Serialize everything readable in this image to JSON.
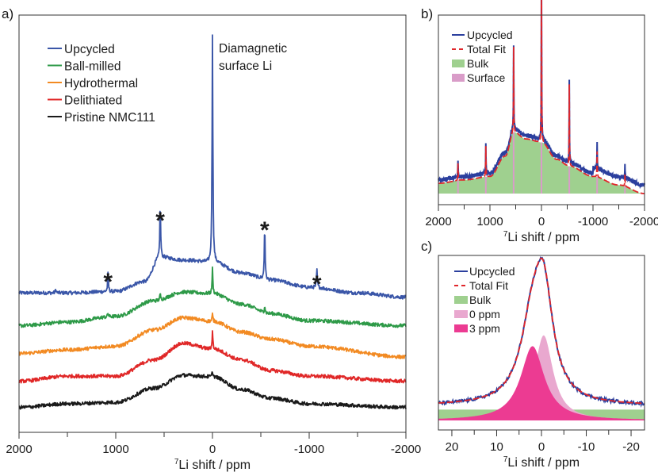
{
  "chart_data": [
    {
      "panel": "a)",
      "type": "line",
      "title": "",
      "xlabel_sup": "7",
      "xlabel": "Li shift / ppm",
      "ylabel": "",
      "xlim": [
        2000,
        -2000
      ],
      "x_ticks": [
        2000,
        1000,
        0,
        -1000,
        -2000
      ],
      "x_tick_labels": [
        "2000",
        "1000",
        "0",
        "-1000",
        "-2000"
      ],
      "x_minor_ticks": [
        1500,
        500,
        -500,
        -1500
      ],
      "y_axis_shown": false,
      "grid": false,
      "legend_position": "top-left",
      "annotations": [
        {
          "text": "Diamagnetic",
          "line": 1
        },
        {
          "text": "surface Li",
          "line": 2
        },
        {
          "text": "*",
          "x": 1080,
          "marks": "spinning sideband"
        },
        {
          "text": "*",
          "x": 540,
          "marks": "spinning sideband"
        },
        {
          "text": "*",
          "x": -540,
          "marks": "spinning sideband"
        },
        {
          "text": "*",
          "x": -1080,
          "marks": "spinning sideband"
        }
      ],
      "series": [
        {
          "name": "Upcycled",
          "color": "#3a56a8",
          "offset": 4,
          "baseline_points": [
            [
              2000,
              0.12
            ],
            [
              1500,
              0.12
            ],
            [
              1000,
              0.14
            ],
            [
              700,
              0.28
            ],
            [
              540,
              0.62
            ],
            [
              300,
              0.58
            ],
            [
              0,
              0.55
            ],
            [
              -300,
              0.4
            ],
            [
              -600,
              0.3
            ],
            [
              -1000,
              0.2
            ],
            [
              -1500,
              0.12
            ],
            [
              -2000,
              0.06
            ]
          ],
          "peaks": [
            [
              0,
              3.2
            ],
            [
              540,
              0.75
            ],
            [
              -540,
              0.75
            ],
            [
              1080,
              0.25
            ],
            [
              -1080,
              0.25
            ],
            [
              1620,
              0.05
            ]
          ]
        },
        {
          "name": "Ball-milled",
          "color": "#2e9a48",
          "offset": 3,
          "baseline_points": [
            [
              2000,
              0.05
            ],
            [
              1500,
              0.1
            ],
            [
              1000,
              0.18
            ],
            [
              600,
              0.4
            ],
            [
              300,
              0.52
            ],
            [
              0,
              0.5
            ],
            [
              -300,
              0.35
            ],
            [
              -600,
              0.22
            ],
            [
              -1000,
              0.12
            ],
            [
              -2000,
              0.05
            ]
          ],
          "peaks": [
            [
              0,
              0.35
            ],
            [
              540,
              0.08
            ],
            [
              -540,
              0.1
            ],
            [
              1080,
              0.05
            ]
          ]
        },
        {
          "name": "Hydrothermal",
          "color": "#f28a22",
          "offset": 2,
          "baseline_points": [
            [
              2000,
              0.05
            ],
            [
              1500,
              0.1
            ],
            [
              1000,
              0.15
            ],
            [
              600,
              0.38
            ],
            [
              300,
              0.55
            ],
            [
              0,
              0.5
            ],
            [
              -300,
              0.35
            ],
            [
              -600,
              0.25
            ],
            [
              -1000,
              0.15
            ],
            [
              -2000,
              0.0
            ]
          ],
          "peaks": [
            [
              0,
              0.1
            ]
          ]
        },
        {
          "name": "Delithiated",
          "color": "#e02727",
          "offset": 1,
          "baseline_points": [
            [
              2000,
              0.05
            ],
            [
              1500,
              0.12
            ],
            [
              1000,
              0.12
            ],
            [
              600,
              0.35
            ],
            [
              300,
              0.58
            ],
            [
              0,
              0.5
            ],
            [
              -300,
              0.35
            ],
            [
              -600,
              0.2
            ],
            [
              -1000,
              0.12
            ],
            [
              -2000,
              0.05
            ]
          ],
          "peaks": [
            [
              0,
              0.25
            ]
          ]
        },
        {
          "name": "Pristine NMC111",
          "color": "#1a1a1a",
          "offset": 0,
          "baseline_points": [
            [
              2000,
              0.05
            ],
            [
              1500,
              0.1
            ],
            [
              1000,
              0.12
            ],
            [
              600,
              0.32
            ],
            [
              300,
              0.5
            ],
            [
              0,
              0.48
            ],
            [
              -300,
              0.3
            ],
            [
              -600,
              0.18
            ],
            [
              -1000,
              0.1
            ],
            [
              -2000,
              0.05
            ]
          ],
          "peaks": [
            [
              0,
              0.08
            ]
          ]
        }
      ]
    },
    {
      "panel": "b)",
      "type": "line",
      "xlabel_sup": "7",
      "xlabel": "Li shift / ppm",
      "xlim": [
        2000,
        -2000
      ],
      "x_ticks": [
        2000,
        1000,
        0,
        -1000,
        -2000
      ],
      "x_tick_labels": [
        "2000",
        "1000",
        "0",
        "-1000",
        "-2000"
      ],
      "x_minor_ticks": [
        1500,
        500,
        -500,
        -1500
      ],
      "y_axis_shown": false,
      "grid": false,
      "legend_position": "top-left",
      "legend": [
        {
          "name": "Upcycled",
          "kind": "line",
          "color": "#2b3f9e"
        },
        {
          "name": "Total Fit",
          "kind": "dashed",
          "color": "#e0262a"
        },
        {
          "name": "Bulk",
          "kind": "fill",
          "color": "#9fd08f"
        },
        {
          "name": "Surface",
          "kind": "fill",
          "color": "#d99cc8"
        }
      ],
      "bulk_points": [
        [
          2000,
          0.06
        ],
        [
          1500,
          0.08
        ],
        [
          1000,
          0.1
        ],
        [
          700,
          0.22
        ],
        [
          540,
          0.36
        ],
        [
          300,
          0.32
        ],
        [
          0,
          0.3
        ],
        [
          -300,
          0.2
        ],
        [
          -540,
          0.16
        ],
        [
          -1000,
          0.1
        ],
        [
          -1500,
          0.05
        ],
        [
          -2000,
          0.0
        ]
      ],
      "peaks": [
        [
          0,
          1.0
        ],
        [
          540,
          0.5
        ],
        [
          -540,
          0.48
        ],
        [
          1080,
          0.18
        ],
        [
          -1080,
          0.15
        ],
        [
          1620,
          0.1
        ],
        [
          -1620,
          0.07
        ]
      ]
    },
    {
      "panel": "c)",
      "type": "line",
      "xlabel_sup": "7",
      "xlabel": "Li shift / ppm",
      "xlim": [
        23,
        -23
      ],
      "x_ticks": [
        20,
        10,
        0,
        -10,
        -20
      ],
      "x_tick_labels": [
        "20",
        "10",
        "0",
        "-10",
        "-20"
      ],
      "x_minor_ticks": [
        15,
        5,
        -5,
        -15
      ],
      "y_axis_shown": false,
      "grid": false,
      "legend_position": "top-left",
      "legend": [
        {
          "name": "Upcycled",
          "kind": "line",
          "color": "#2b3f9e"
        },
        {
          "name": "Total Fit",
          "kind": "dashed",
          "color": "#e0262a"
        },
        {
          "name": "Bulk",
          "kind": "fill",
          "color": "#9fd08f"
        },
        {
          "name": "0 ppm",
          "kind": "fill",
          "color": "#e9a8cf"
        },
        {
          "name": "3 ppm",
          "kind": "fill",
          "color": "#ec3b92"
        }
      ],
      "components": [
        {
          "name": "Bulk",
          "shape": "flat",
          "height": 0.1
        },
        {
          "name": "0 ppm",
          "center": -0.5,
          "width": 2.5,
          "height": 0.55
        },
        {
          "name": "3 ppm",
          "center": 2.0,
          "width": 3.2,
          "height": 0.48
        }
      ],
      "total_fit_peak_height": 0.92,
      "total_fit_peak_x": 0
    }
  ],
  "labels": {
    "panel_a": "a)",
    "panel_b": "b)",
    "panel_c": "c)"
  }
}
